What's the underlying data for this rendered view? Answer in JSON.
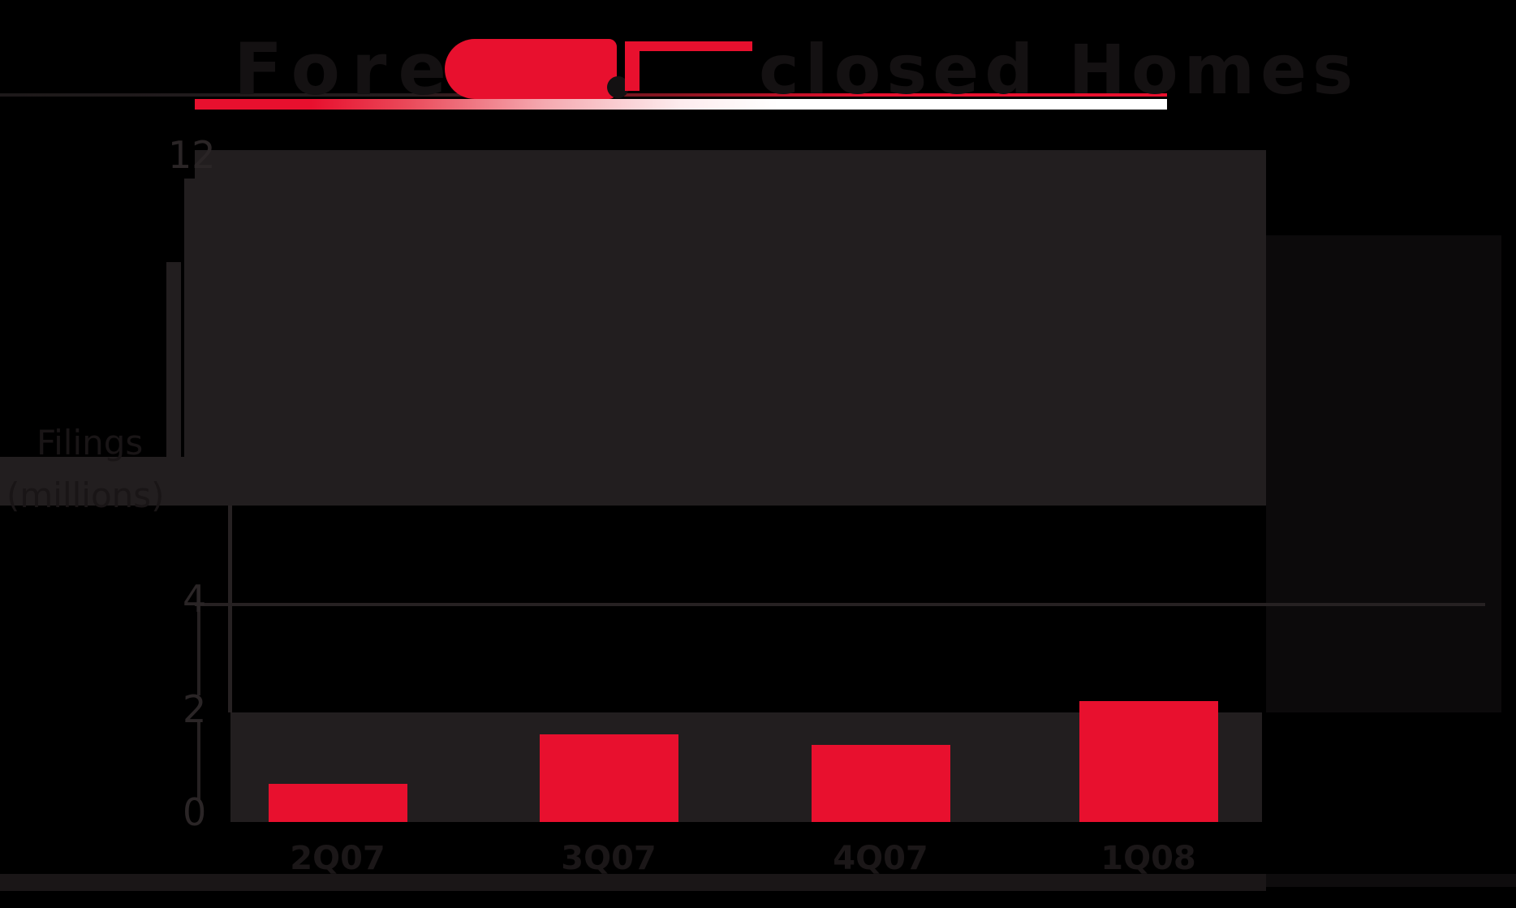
{
  "colors": {
    "background": "#000000",
    "accent_red": "#e8102e",
    "charcoal_shape": "#221e1f",
    "axis_gray": "#262122",
    "faint_text": "#1b1718"
  },
  "header": {
    "title_word_left": "Fore",
    "title_fragment": "closed Homes",
    "logo_parts": [
      "red-rounded-block",
      "dark-period-dot",
      "red-tee-crossbar"
    ],
    "underline": "red-to-white-gradient-rule"
  },
  "y_axis": {
    "title_line1": "Filings",
    "title_line2": "(millions)",
    "ticks": [
      {
        "label": "12"
      },
      {
        "label": "4"
      },
      {
        "label": "2"
      },
      {
        "label": "0"
      }
    ]
  },
  "chart_data": {
    "type": "bar",
    "title": "(title mostly illegible dark-on-black; legible fragment: 'closed Homes')",
    "categories": [
      "2Q07",
      "3Q07",
      "4Q07",
      "1Q08"
    ],
    "values": [
      0.7,
      1.6,
      1.4,
      2.2
    ],
    "series": [
      {
        "name": "red-bars",
        "color": "#e8102e",
        "values": [
          0.7,
          1.6,
          1.4,
          2.2
        ]
      }
    ],
    "xlabel": "",
    "ylabel": "Filings (millions)",
    "ylim": [
      0,
      12
    ],
    "yticks_visible": [
      0,
      2,
      4,
      12
    ],
    "grid": "horizontal line at 4; shaded band 0-2",
    "legend": "none"
  }
}
